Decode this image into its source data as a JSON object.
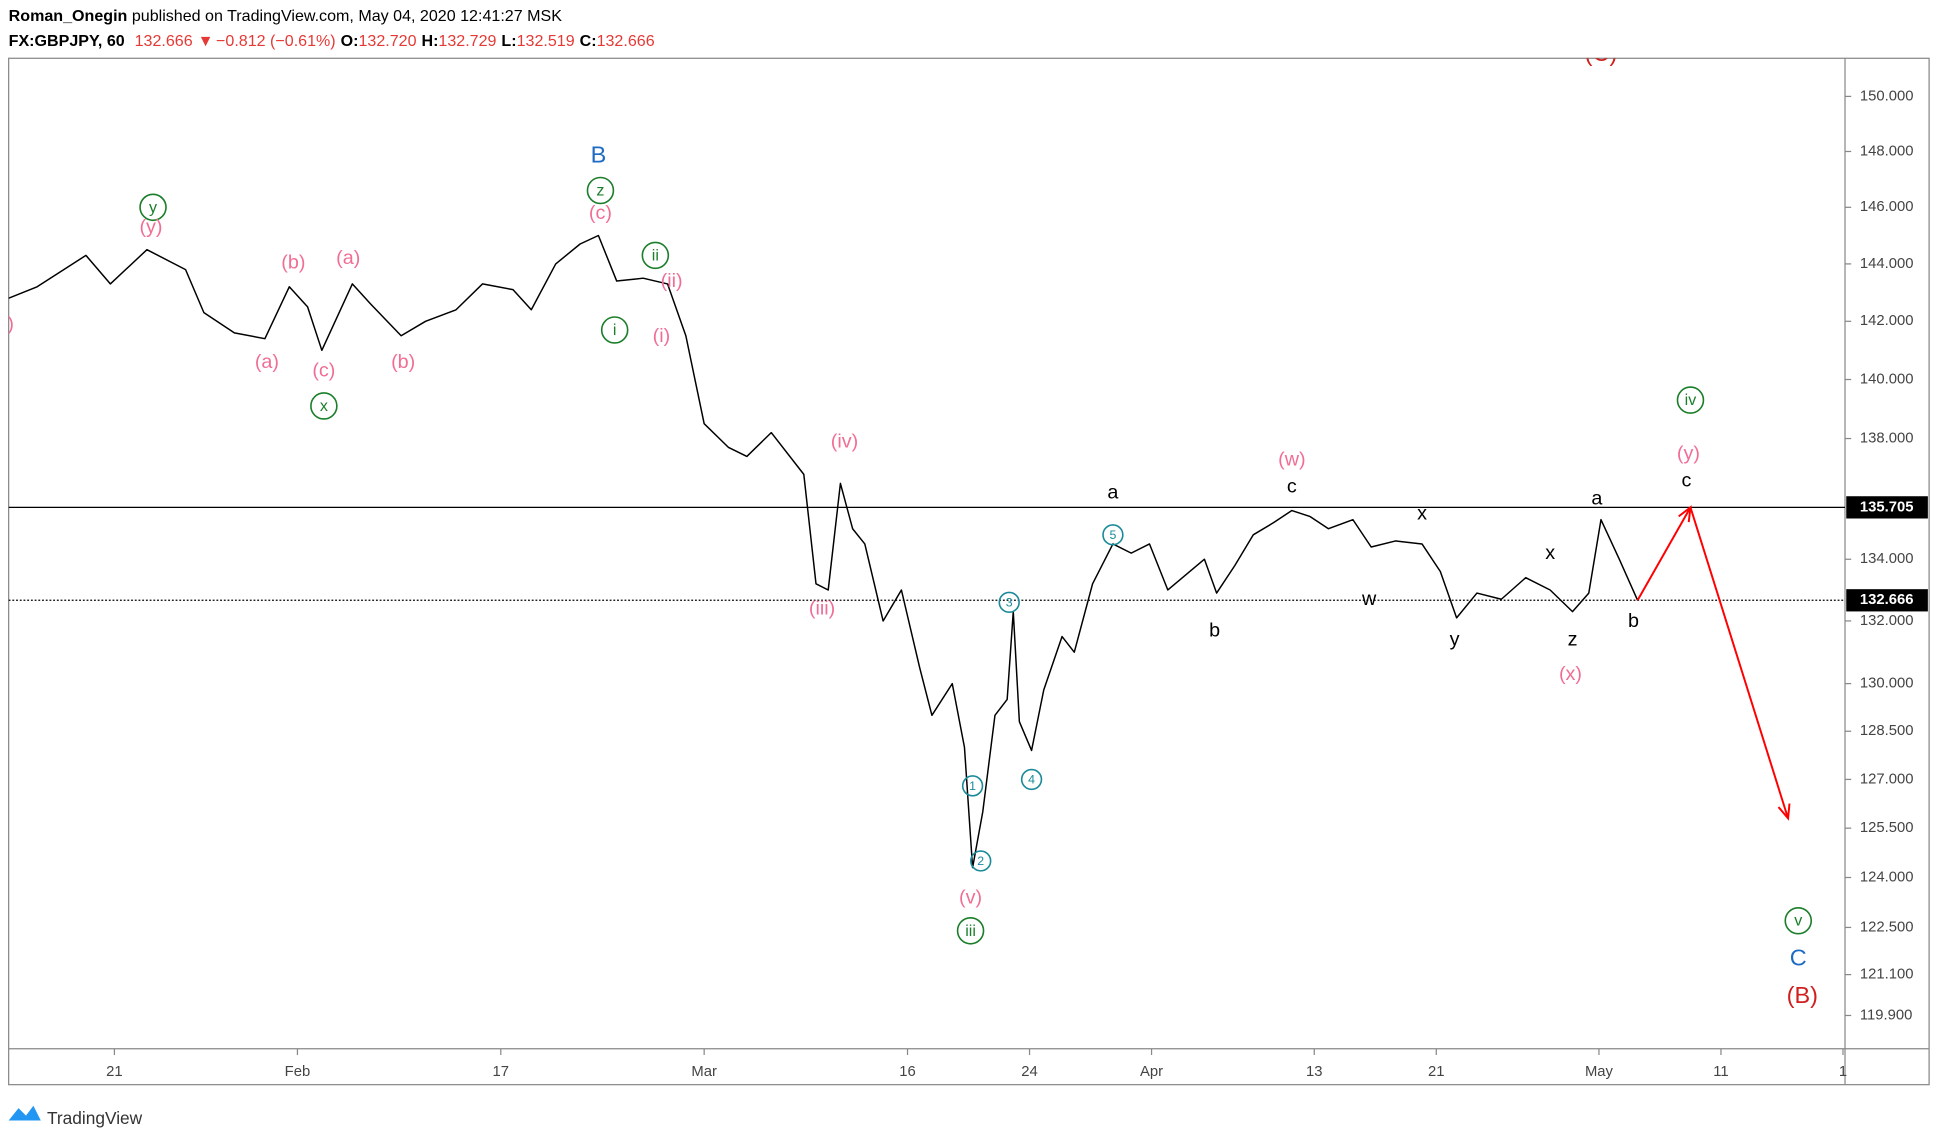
{
  "header": {
    "author": "Roman_Onegin",
    "published": " published on TradingView.com, May 04, 2020 12:41:27 MSK",
    "symbol": "FX:GBPJPY, 60",
    "last": "132.666",
    "arrow": "▼",
    "change": "−0.812 (−0.61%)",
    "ohlc": [
      {
        "label": "O:",
        "value": "132.720"
      },
      {
        "label": "H:",
        "value": "132.729"
      },
      {
        "label": "L:",
        "value": "132.519"
      },
      {
        "label": "C:",
        "value": "132.666"
      }
    ]
  },
  "footer": {
    "brand": "TradingView"
  },
  "chart_data": {
    "type": "line",
    "log_scale": true,
    "xlim": [
      -5.2,
      85.1
    ],
    "ylim": [
      118.93,
      151.4
    ],
    "xticks": [
      {
        "value": 0,
        "label": "21"
      },
      {
        "value": 9,
        "label": "Feb"
      },
      {
        "value": 19,
        "label": "17"
      },
      {
        "value": 29,
        "label": "Mar"
      },
      {
        "value": 39,
        "label": "16"
      },
      {
        "value": 45,
        "label": "24"
      },
      {
        "value": 51,
        "label": "Apr"
      },
      {
        "value": 59,
        "label": "13"
      },
      {
        "value": 65,
        "label": "21"
      },
      {
        "value": 73,
        "label": "May"
      },
      {
        "value": 79,
        "label": "11"
      },
      {
        "value": 85,
        "label": "1"
      }
    ],
    "yticks": [
      {
        "value": 150,
        "label": "150.000"
      },
      {
        "value": 148,
        "label": "148.000"
      },
      {
        "value": 146,
        "label": "146.000"
      },
      {
        "value": 144,
        "label": "144.000"
      },
      {
        "value": 142,
        "label": "142.000"
      },
      {
        "value": 140,
        "label": "140.000"
      },
      {
        "value": 138,
        "label": "138.000"
      },
      {
        "value": 134,
        "label": "134.000"
      },
      {
        "value": 132,
        "label": "132.000"
      },
      {
        "value": 130,
        "label": "130.000"
      },
      {
        "value": 128.5,
        "label": "128.500"
      },
      {
        "value": 127,
        "label": "127.000"
      },
      {
        "value": 125.5,
        "label": "125.500"
      },
      {
        "value": 124,
        "label": "124.000"
      },
      {
        "value": 122.5,
        "label": "122.500"
      },
      {
        "value": 121.1,
        "label": "121.100"
      },
      {
        "value": 119.9,
        "label": "119.900"
      }
    ],
    "series": [
      {
        "color": "#000000",
        "x": [
          -5.2,
          -3.8,
          -1.4,
          -0.2,
          1.6,
          3.5,
          4.4,
          5.9,
          7.4,
          8.6,
          9.5,
          10.2,
          11.7,
          12.6,
          14.1,
          15.3,
          16.8,
          18.1,
          19.6,
          20.5,
          21.7,
          22.9,
          23.8,
          24.7,
          26.0,
          27.2,
          28.1,
          29.0,
          30.2,
          31.1,
          32.3,
          33.9,
          34.5,
          35.1,
          35.7,
          36.3,
          36.9,
          37.8,
          38.7,
          39.6,
          40.2,
          41.2,
          41.8,
          42.2,
          42.7,
          43.3,
          43.9,
          44.2,
          44.5,
          45.1,
          45.7,
          46.6,
          47.2,
          48.1,
          49.1,
          50.0,
          50.9,
          51.8,
          52.7,
          53.6,
          54.2,
          55.1,
          56.0,
          57.0,
          57.9,
          58.8,
          59.7,
          60.9,
          61.8,
          63.0,
          64.3,
          65.2,
          66.0,
          67.0,
          68.2,
          69.4,
          70.6,
          71.7,
          72.5,
          73.1,
          74.0,
          74.9
        ],
        "values": [
          142.8,
          143.2,
          144.3,
          143.3,
          144.5,
          143.8,
          142.3,
          141.6,
          141.4,
          143.2,
          142.5,
          141.0,
          143.3,
          142.6,
          141.5,
          142.0,
          142.4,
          143.3,
          143.1,
          142.4,
          144.0,
          144.7,
          145.0,
          143.4,
          143.5,
          143.3,
          141.5,
          138.5,
          137.7,
          137.4,
          138.2,
          136.8,
          133.2,
          133.0,
          136.5,
          135.0,
          134.5,
          132.0,
          133.0,
          130.5,
          129.0,
          130.0,
          128.0,
          124.3,
          126.0,
          129.0,
          129.5,
          132.3,
          128.8,
          127.9,
          129.8,
          131.5,
          131.0,
          133.2,
          134.5,
          134.2,
          134.5,
          133.0,
          133.5,
          134.0,
          132.9,
          133.8,
          134.8,
          135.2,
          135.6,
          135.4,
          135.0,
          135.3,
          134.4,
          134.6,
          134.5,
          133.6,
          132.1,
          132.9,
          132.7,
          133.4,
          133.0,
          132.3,
          132.9,
          135.3,
          134.0,
          132.666
        ]
      },
      {
        "color": "#ff0000",
        "arrow": true,
        "x": [
          74.9,
          77.5,
          82.3
        ],
        "values": [
          132.666,
          135.705,
          125.8
        ]
      }
    ],
    "hlines": [
      {
        "value": 135.705,
        "style": "solid"
      },
      {
        "value": 132.666,
        "style": "dotted"
      }
    ],
    "annotations": [
      {
        "text": ")",
        "x": -5.1,
        "y": 141.9,
        "color": "#f06e94"
      },
      {
        "text": "y",
        "x": 1.9,
        "y": 146.0,
        "color": "#1b7e2a",
        "circle": "large"
      },
      {
        "text": "(y)",
        "x": 1.8,
        "y": 145.3,
        "color": "#f06e94"
      },
      {
        "text": "(b)",
        "x": 8.8,
        "y": 144.05,
        "color": "#f06e94"
      },
      {
        "text": "(a)",
        "x": 11.5,
        "y": 144.2,
        "color": "#f06e94"
      },
      {
        "text": "(a)",
        "x": 7.5,
        "y": 140.6,
        "color": "#f06e94"
      },
      {
        "text": "(c)",
        "x": 10.3,
        "y": 140.3,
        "color": "#f06e94"
      },
      {
        "text": "(b)",
        "x": 14.2,
        "y": 140.6,
        "color": "#f06e94"
      },
      {
        "text": "x",
        "x": 10.3,
        "y": 139.1,
        "color": "#1b7e2a",
        "circle": "large"
      },
      {
        "text": "B",
        "x": 23.8,
        "y": 147.9,
        "color": "#1e6bc4"
      },
      {
        "text": "z",
        "x": 23.9,
        "y": 146.6,
        "color": "#1b7e2a",
        "circle": "large"
      },
      {
        "text": "(c)",
        "x": 23.9,
        "y": 145.8,
        "color": "#f06e94"
      },
      {
        "text": "ii",
        "x": 26.6,
        "y": 144.3,
        "color": "#1b7e2a",
        "circle": "large"
      },
      {
        "text": "(ii)",
        "x": 27.4,
        "y": 143.4,
        "color": "#f06e94"
      },
      {
        "text": "i",
        "x": 24.6,
        "y": 141.7,
        "color": "#1b7e2a",
        "circle": "large"
      },
      {
        "text": "(i)",
        "x": 26.9,
        "y": 141.5,
        "color": "#f06e94"
      },
      {
        "text": "(iv)",
        "x": 35.9,
        "y": 137.9,
        "color": "#f06e94"
      },
      {
        "text": "(iii)",
        "x": 34.8,
        "y": 132.4,
        "color": "#f06e94"
      },
      {
        "text": "1",
        "x": 42.2,
        "y": 126.8,
        "color": "#1a8a9a",
        "circle": "small"
      },
      {
        "text": "2",
        "x": 42.6,
        "y": 124.5,
        "color": "#1a8a9a",
        "circle": "small"
      },
      {
        "text": "3",
        "x": 44.0,
        "y": 132.6,
        "color": "#1a8a9a",
        "circle": "small"
      },
      {
        "text": "4",
        "x": 45.1,
        "y": 127.0,
        "color": "#1a8a9a",
        "circle": "small"
      },
      {
        "text": "5",
        "x": 49.1,
        "y": 134.8,
        "color": "#1a8a9a",
        "circle": "small"
      },
      {
        "text": "(v)",
        "x": 42.1,
        "y": 123.4,
        "color": "#f06e94"
      },
      {
        "text": "iii",
        "x": 42.1,
        "y": 122.4,
        "color": "#1b7e2a",
        "circle": "large"
      },
      {
        "text": "a",
        "x": 49.1,
        "y": 136.2,
        "color": "#000000"
      },
      {
        "text": "b",
        "x": 54.1,
        "y": 131.7,
        "color": "#000000"
      },
      {
        "text": "(w)",
        "x": 57.9,
        "y": 137.3,
        "color": "#f06e94"
      },
      {
        "text": "c",
        "x": 57.9,
        "y": 136.4,
        "color": "#000000"
      },
      {
        "text": "x",
        "x": 64.3,
        "y": 135.5,
        "color": "#000000"
      },
      {
        "text": "w",
        "x": 61.7,
        "y": 132.7,
        "color": "#000000"
      },
      {
        "text": "y",
        "x": 65.9,
        "y": 131.4,
        "color": "#000000"
      },
      {
        "text": "x",
        "x": 70.6,
        "y": 134.2,
        "color": "#000000"
      },
      {
        "text": "z",
        "x": 71.7,
        "y": 131.4,
        "color": "#000000"
      },
      {
        "text": "(x)",
        "x": 71.6,
        "y": 130.3,
        "color": "#f06e94"
      },
      {
        "text": "a",
        "x": 72.9,
        "y": 136.0,
        "color": "#000000"
      },
      {
        "text": "b",
        "x": 74.7,
        "y": 132.0,
        "color": "#000000"
      },
      {
        "text": "(C)",
        "x": 73.1,
        "y": 151.6,
        "color": "#d01f1f"
      },
      {
        "text": "iv",
        "x": 77.5,
        "y": 139.3,
        "color": "#1b7e2a",
        "circle": "large"
      },
      {
        "text": "(y)",
        "x": 77.4,
        "y": 137.5,
        "color": "#f06e94"
      },
      {
        "text": "c",
        "x": 77.3,
        "y": 136.6,
        "color": "#000000"
      },
      {
        "text": "v",
        "x": 82.8,
        "y": 122.7,
        "color": "#1b7e2a",
        "circle": "large"
      },
      {
        "text": "C",
        "x": 82.8,
        "y": 121.6,
        "color": "#1e6bc4"
      },
      {
        "text": "(B)",
        "x": 83.0,
        "y": 120.5,
        "color": "#d01f1f"
      }
    ]
  }
}
